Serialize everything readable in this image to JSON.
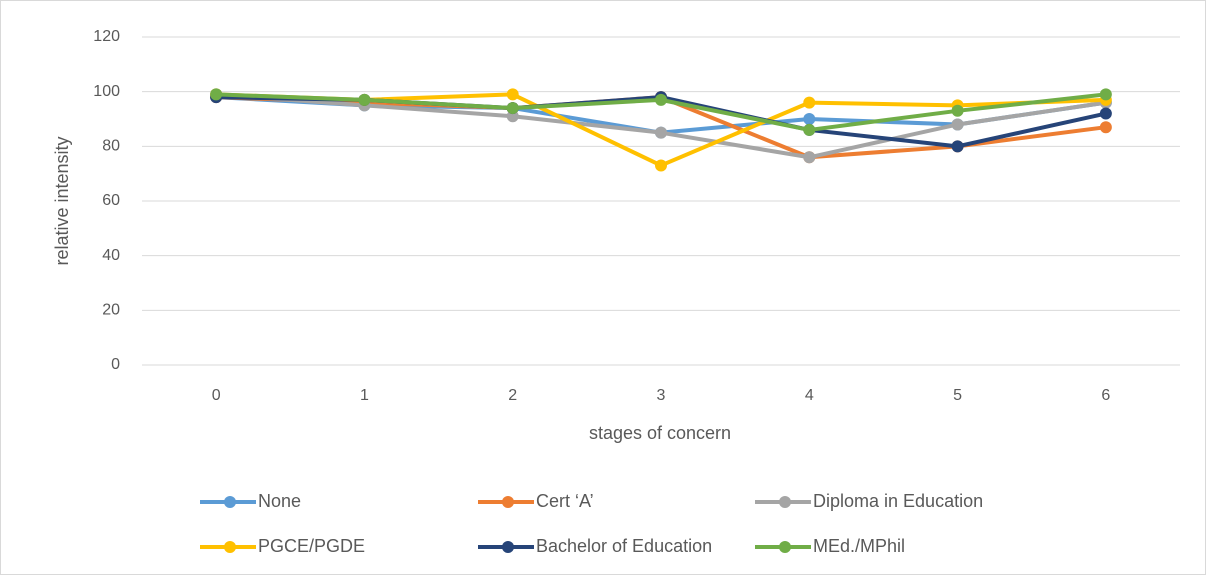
{
  "chart_data": {
    "type": "line",
    "x_label": "stages of concern",
    "y_label": "relative intensity",
    "categories": [
      "0",
      "1",
      "2",
      "3",
      "4",
      "5",
      "6"
    ],
    "series": [
      {
        "name": "None",
        "color": "#5b9bd5",
        "values": [
          98,
          95,
          94,
          85,
          90,
          88,
          96
        ]
      },
      {
        "name": "Cert ‘A’",
        "color": "#ed7d31",
        "values": [
          98,
          96,
          94,
          98,
          76,
          80,
          87
        ]
      },
      {
        "name": "Diploma in Education",
        "color": "#a5a5a5",
        "values": [
          99,
          95,
          91,
          85,
          76,
          88,
          96
        ]
      },
      {
        "name": "PGCE/PGDE",
        "color": "#ffc000",
        "values": [
          99,
          97,
          99,
          73,
          96,
          95,
          97
        ]
      },
      {
        "name": "Bachelor of Education",
        "color": "#264478",
        "values": [
          98,
          97,
          94,
          98,
          86,
          80,
          92
        ]
      },
      {
        "name": "MEd./MPhil",
        "color": "#70ad47",
        "values": [
          99,
          97,
          94,
          97,
          86,
          93,
          99
        ]
      }
    ],
    "ylim": [
      0,
      120
    ],
    "yticks": [
      0,
      20,
      40,
      60,
      80,
      100,
      120
    ],
    "grid": true,
    "legend": "bottom"
  }
}
